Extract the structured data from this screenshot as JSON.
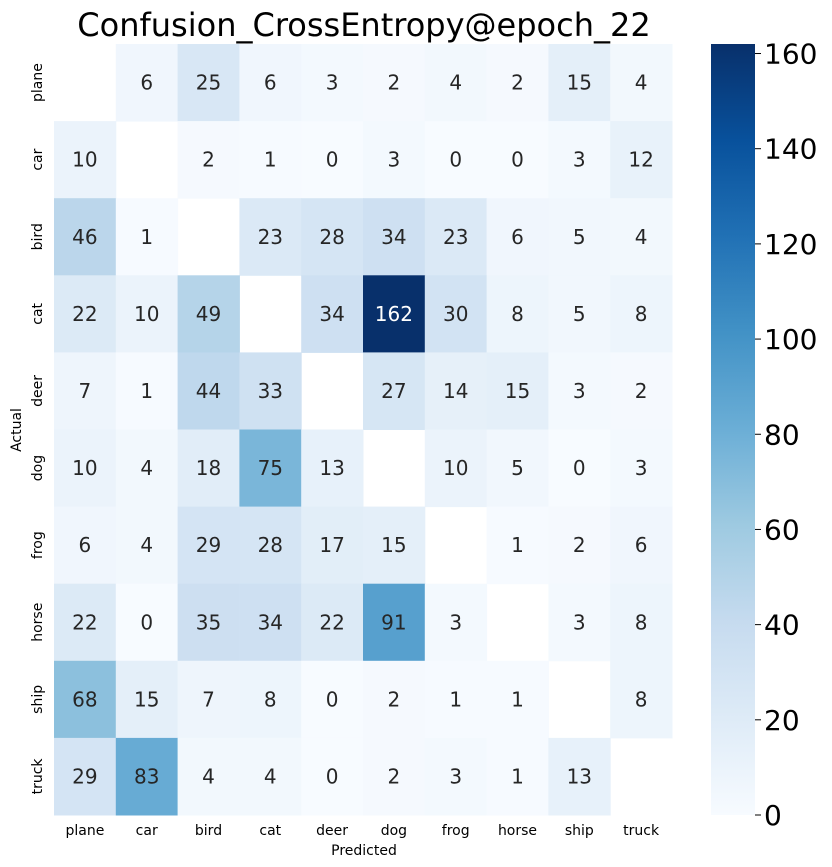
{
  "chart_data": {
    "type": "heatmap",
    "title": "Confusion_CrossEntropy@epoch_22",
    "xlabel": "Predicted",
    "ylabel": "Actual",
    "x_categories": [
      "plane",
      "car",
      "bird",
      "cat",
      "deer",
      "dog",
      "frog",
      "horse",
      "ship",
      "truck"
    ],
    "y_categories": [
      "plane",
      "car",
      "bird",
      "cat",
      "deer",
      "dog",
      "frog",
      "horse",
      "ship",
      "truck"
    ],
    "values": [
      [
        null,
        6,
        25,
        6,
        3,
        2,
        4,
        2,
        15,
        4
      ],
      [
        10,
        null,
        2,
        1,
        0,
        3,
        0,
        0,
        3,
        12
      ],
      [
        46,
        1,
        null,
        23,
        28,
        34,
        23,
        6,
        5,
        4
      ],
      [
        22,
        10,
        49,
        null,
        34,
        162,
        30,
        8,
        5,
        8
      ],
      [
        7,
        1,
        44,
        33,
        null,
        27,
        14,
        15,
        3,
        2
      ],
      [
        10,
        4,
        18,
        75,
        13,
        null,
        10,
        5,
        0,
        3
      ],
      [
        6,
        4,
        29,
        28,
        17,
        15,
        null,
        1,
        2,
        6
      ],
      [
        22,
        0,
        35,
        34,
        22,
        91,
        3,
        null,
        3,
        8
      ],
      [
        68,
        15,
        7,
        8,
        0,
        2,
        1,
        1,
        null,
        8
      ],
      [
        29,
        83,
        4,
        4,
        0,
        2,
        3,
        1,
        13,
        null
      ]
    ],
    "colorbar": {
      "colormap": "Blues",
      "range": [
        0,
        162
      ],
      "ticks": [
        0,
        20,
        40,
        60,
        80,
        100,
        120,
        140,
        160
      ]
    },
    "diagonal": "masked"
  }
}
